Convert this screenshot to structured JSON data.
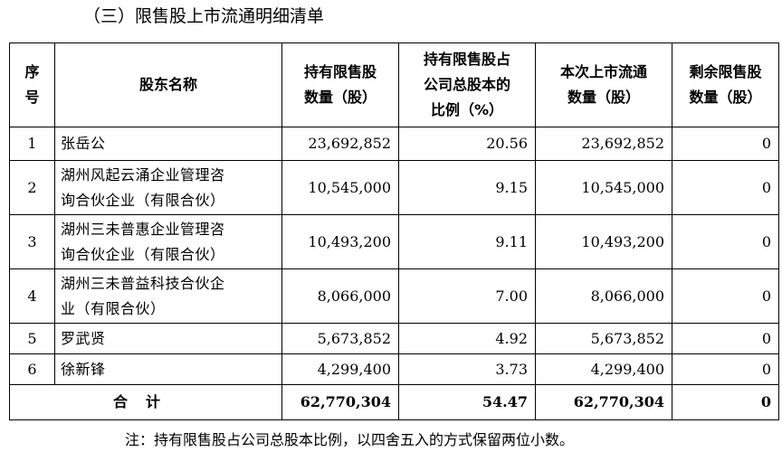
{
  "section_heading": "（三）限售股上市流通明细清单",
  "table": {
    "headers": {
      "seq": [
        "序",
        "号"
      ],
      "name": "股东名称",
      "held": [
        "持有限售股",
        "数量（股）"
      ],
      "ratio": [
        "持有限售股占",
        "公司总股本的",
        "比例（%）"
      ],
      "listed": [
        "本次上市流通",
        "数量（股）"
      ],
      "remaining": [
        "剩余限售股",
        "数量（股）"
      ]
    },
    "rows": [
      {
        "seq": "1",
        "name": [
          "张岳公"
        ],
        "held": "23,692,852",
        "ratio": "20.56",
        "listed": "23,692,852",
        "remaining": "0"
      },
      {
        "seq": "2",
        "name": [
          "湖州风起云涌企业管理咨",
          "询合伙企业（有限合伙）"
        ],
        "held": "10,545,000",
        "ratio": "9.15",
        "listed": "10,545,000",
        "remaining": "0"
      },
      {
        "seq": "3",
        "name": [
          "湖州三未普惠企业管理咨",
          "询合伙企业（有限合伙）"
        ],
        "held": "10,493,200",
        "ratio": "9.11",
        "listed": "10,493,200",
        "remaining": "0"
      },
      {
        "seq": "4",
        "name": [
          "湖州三未普益科技合伙企",
          "业（有限合伙）"
        ],
        "held": "8,066,000",
        "ratio": "7.00",
        "listed": "8,066,000",
        "remaining": "0"
      },
      {
        "seq": "5",
        "name": [
          "罗武贤"
        ],
        "held": "5,673,852",
        "ratio": "4.92",
        "listed": "5,673,852",
        "remaining": "0"
      },
      {
        "seq": "6",
        "name": [
          "徐新锋"
        ],
        "held": "4,299,400",
        "ratio": "3.73",
        "listed": "4,299,400",
        "remaining": "0"
      }
    ],
    "total": {
      "label": "合计",
      "held": "62,770,304",
      "ratio": "54.47",
      "listed": "62,770,304",
      "remaining": "0"
    }
  },
  "note": "注：持有限售股占公司总股本比例，以四舍五入的方式保留两位小数。"
}
